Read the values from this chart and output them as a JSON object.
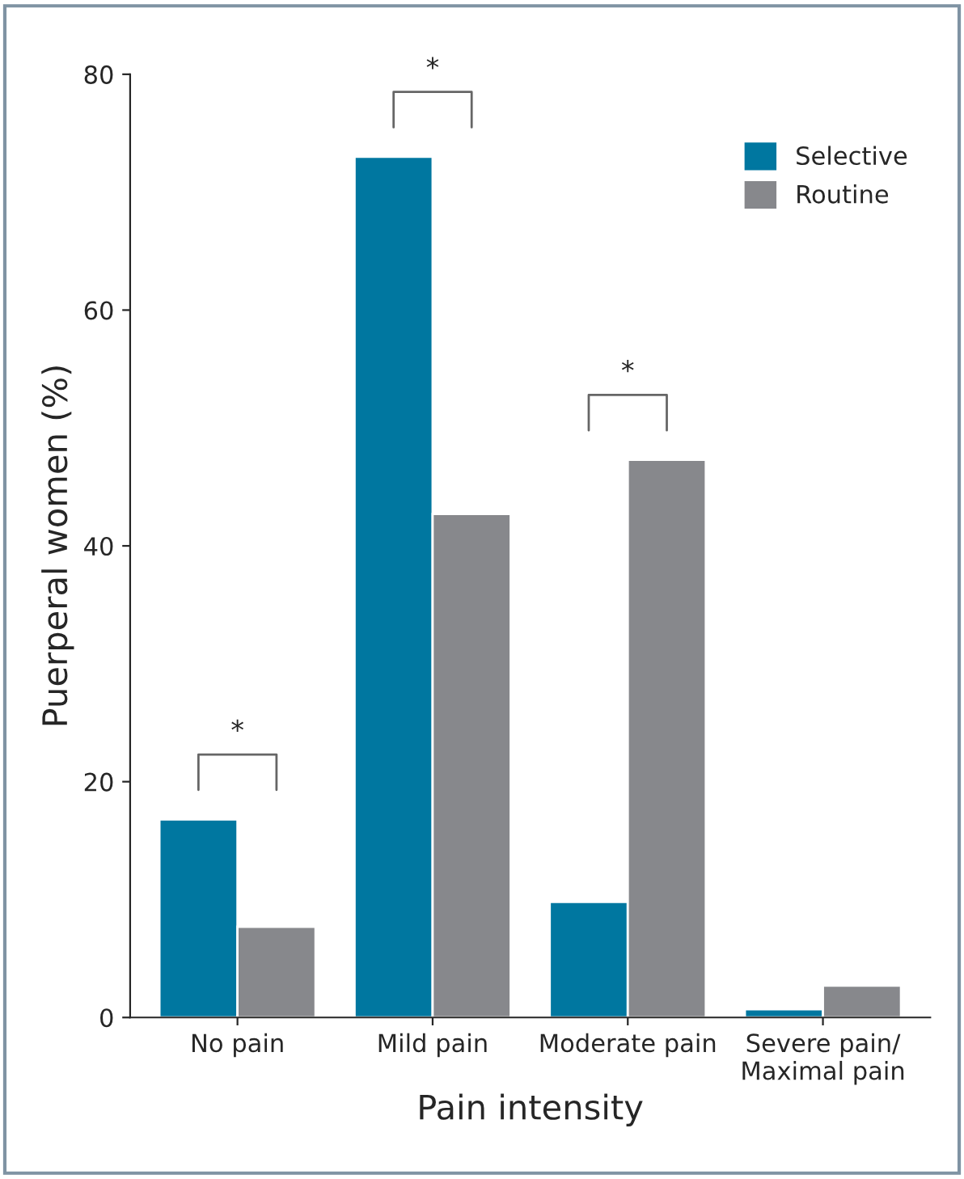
{
  "chart_data": {
    "type": "bar",
    "xlabel": "Pain intensity",
    "ylabel": "Puerperal women (%)",
    "categories": [
      "No pain",
      "Mild pain",
      "Moderate pain",
      "Severe pain/\nMaximal pain"
    ],
    "series": [
      {
        "name": "Selective",
        "color": "#0077a0",
        "values": [
          16.8,
          73.0,
          9.8,
          0.7
        ]
      },
      {
        "name": "Routine",
        "color": "#87888c",
        "values": [
          7.7,
          42.7,
          47.3,
          2.7
        ]
      }
    ],
    "ylim": [
      0,
      80
    ],
    "yticks": [
      0,
      20,
      40,
      60,
      80
    ],
    "grid": false,
    "legend": "top right",
    "annotations": [
      "*",
      "*",
      "*"
    ]
  }
}
